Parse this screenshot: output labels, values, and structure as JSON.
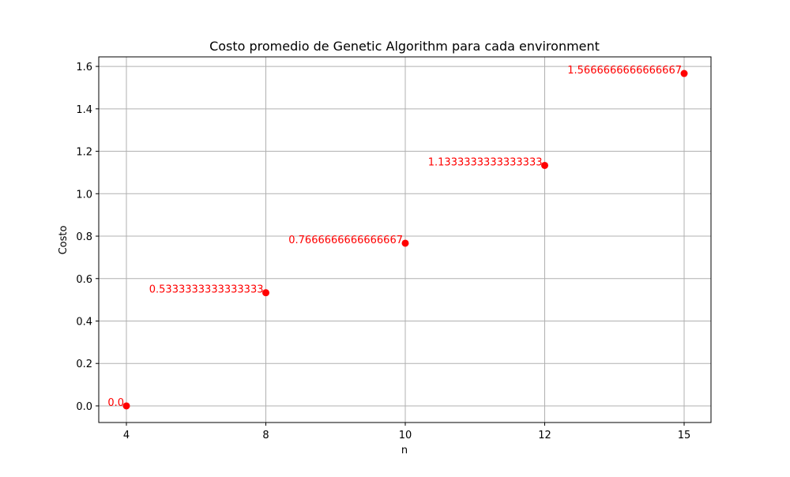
{
  "chart_data": {
    "type": "scatter",
    "title": "Costo promedio de Genetic Algorithm para cada environment",
    "xlabel": "n",
    "ylabel": "Costo",
    "categories": [
      "4",
      "8",
      "10",
      "12",
      "15"
    ],
    "values": [
      0.0,
      0.5333333333333333,
      0.7666666666666667,
      1.1333333333333333,
      1.5666666666666667
    ],
    "data_labels": [
      "0.0",
      "0.5333333333333333",
      "0.7666666666666667",
      "1.1333333333333333",
      "1.5666666666666667"
    ],
    "y_ticks": [
      0.0,
      0.2,
      0.4,
      0.6,
      0.8,
      1.0,
      1.2,
      1.4,
      1.6
    ],
    "y_tick_labels": [
      "0.0",
      "0.2",
      "0.4",
      "0.6",
      "0.8",
      "1.0",
      "1.2",
      "1.4",
      "1.6"
    ],
    "ylim": [
      -0.0783,
      1.645
    ],
    "grid": true,
    "colors": {
      "marker": "#ff0000",
      "label": "#ff0000",
      "grid": "#b0b0b0"
    }
  }
}
